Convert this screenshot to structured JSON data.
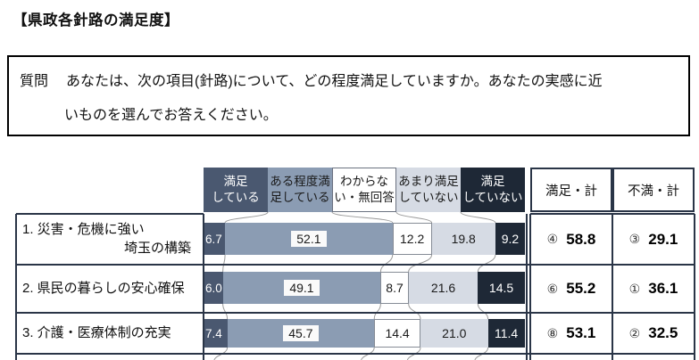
{
  "page_title": "【県政各針路の満足度】",
  "question": {
    "label": "質問",
    "line1": "あなたは、次の項目(針路)について、どの程度満足していますか。あなたの実感に近",
    "line2": "いものを選んでお答えください。"
  },
  "table": {
    "headers": {
      "categories": [
        {
          "label": "満足\nしている",
          "bg": "#4a5870",
          "fg": "#ffffff"
        },
        {
          "label": "ある程度満\n足している",
          "bg": "#8b9cb3",
          "fg": "#1a1a1a"
        },
        {
          "label": "わからな\nい・無回答",
          "bg": "#ffffff",
          "fg": "#1a1a1a"
        },
        {
          "label": "あまり満足\nしていない",
          "bg": "#d6dbe4",
          "fg": "#1a1a1a"
        },
        {
          "label": "満足\nしていない",
          "bg": "#1e2836",
          "fg": "#ffffff"
        }
      ],
      "satisfied_total": "満足・計",
      "dissatisfied_total": "不満・計"
    },
    "rows": [
      {
        "label": [
          "1. 災害・危機に強い",
          "埼玉の構築"
        ],
        "display": [
          "6.7",
          "52.1",
          "12.2",
          "19.8",
          "9.2"
        ],
        "satisfied": {
          "rank": "④",
          "value": "58.8"
        },
        "dissatisfied": {
          "rank": "③",
          "value": "29.1"
        }
      },
      {
        "label": [
          "2. 県民の暮らしの安心確保"
        ],
        "display": [
          "6.0",
          "49.1",
          "8.7",
          "21.6",
          "14.5"
        ],
        "satisfied": {
          "rank": "⑥",
          "value": "55.2"
        },
        "dissatisfied": {
          "rank": "①",
          "value": "36.1"
        }
      },
      {
        "label": [
          "3. 介護・医療体制の充実"
        ],
        "display": [
          "7.4",
          "45.7",
          "14.4",
          "21.0",
          "11.4"
        ],
        "satisfied": {
          "rank": "⑧",
          "value": "53.1"
        },
        "dissatisfied": {
          "rank": "②",
          "value": "32.5"
        }
      }
    ]
  },
  "chart_data": {
    "type": "bar",
    "subtype": "stacked-horizontal",
    "title": "県政各針路の満足度",
    "unit": "%",
    "xlim": [
      0,
      100
    ],
    "legend_position": "top",
    "categories": [
      "1. 災害・危機に強い埼玉の構築",
      "2. 県民の暮らしの安心確保",
      "3. 介護・医療体制の充実"
    ],
    "series": [
      {
        "name": "満足している",
        "values": [
          6.7,
          6.0,
          7.4
        ],
        "color": "#4a5870"
      },
      {
        "name": "ある程度満足している",
        "values": [
          52.1,
          49.1,
          45.7
        ],
        "color": "#8b9cb3"
      },
      {
        "name": "わからない・無回答",
        "values": [
          12.2,
          8.7,
          14.4
        ],
        "color": "#ffffff"
      },
      {
        "name": "あまり満足していない",
        "values": [
          19.8,
          21.6,
          21.0
        ],
        "color": "#d6dbe4"
      },
      {
        "name": "満足していない",
        "values": [
          9.2,
          14.5,
          11.4
        ],
        "color": "#1e2836"
      }
    ],
    "satisfied_total": {
      "label": "満足・計",
      "ranks": [
        "④",
        "⑥",
        "⑧"
      ],
      "values": [
        58.8,
        55.2,
        53.1
      ]
    },
    "dissatisfied_total": {
      "label": "不満・計",
      "ranks": [
        "③",
        "①",
        "②"
      ],
      "values": [
        29.1,
        36.1,
        32.5
      ]
    }
  }
}
